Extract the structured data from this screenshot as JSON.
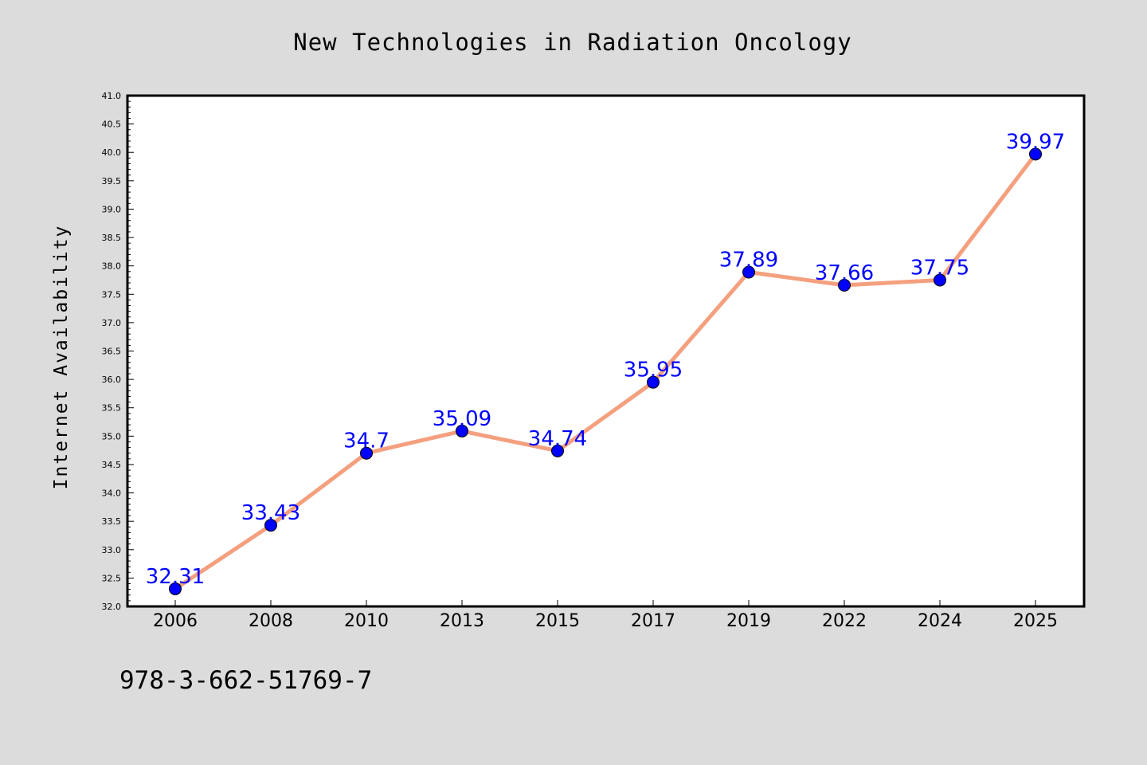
{
  "chart_data": {
    "type": "line",
    "title": "New Technologies in Radiation Oncology",
    "xlabel": "",
    "ylabel": "Internet Availability",
    "categories": [
      "2006",
      "2008",
      "2010",
      "2013",
      "2015",
      "2017",
      "2019",
      "2022",
      "2024",
      "2025"
    ],
    "series": [
      {
        "values": [
          32.31,
          33.43,
          34.7,
          35.09,
          34.74,
          35.95,
          37.89,
          37.66,
          37.75,
          39.97
        ],
        "data_labels": [
          "32.31",
          "33.43",
          "34.7",
          "35.09",
          "34.74",
          "35.95",
          "37.89",
          "37.66",
          "37.75",
          "39.97"
        ]
      }
    ],
    "ylim": [
      32.0,
      41.0
    ],
    "y_ticks": [
      "32.0",
      "32.5",
      "33.0",
      "33.5",
      "34.0",
      "34.5",
      "35.0",
      "35.5",
      "36.0",
      "36.5",
      "37.0",
      "37.5",
      "38.0",
      "38.5",
      "39.0",
      "39.5",
      "40.0",
      "40.5",
      "41.0"
    ],
    "grid": false,
    "legend": "none",
    "colors": {
      "background": "#dcdcdc",
      "plot_area": "#ffffff",
      "line": "#f4a07f",
      "marker": "#0000ff",
      "data_label": "#0000ff"
    }
  },
  "footer_text": "978-3-662-51769-7"
}
